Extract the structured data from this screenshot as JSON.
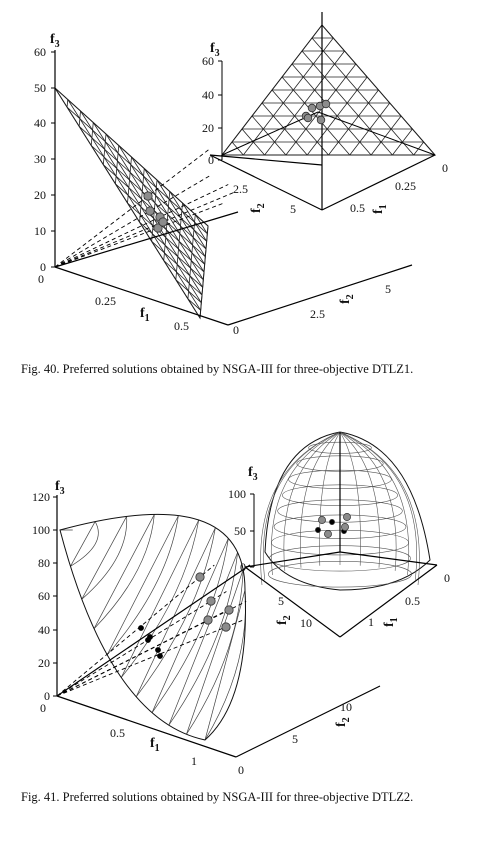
{
  "chart_data": [
    {
      "type": "scatter",
      "caption": "Fig. 40.  Preferred solutions obtained by NSGA-III for three-objective DTLZ1.",
      "main": {
        "axis_f3": {
          "name": "f",
          "sub": "3",
          "ticks": [
            "0",
            "10",
            "20",
            "30",
            "40",
            "50",
            "60"
          ]
        },
        "axis_f1": {
          "name": "f",
          "sub": "1",
          "ticks": [
            "0",
            "0.25",
            "0.5"
          ]
        },
        "axis_f2": {
          "name": "f",
          "sub": "2",
          "ticks": [
            "0",
            "2.5",
            "5"
          ]
        }
      },
      "inset": {
        "axis_f3": {
          "name": "f",
          "sub": "3",
          "ticks": [
            "0",
            "20",
            "40",
            "60"
          ]
        },
        "axis_f2": {
          "name": "f",
          "sub": "2",
          "ticks": [
            "2.5",
            "5"
          ]
        },
        "axis_f1": {
          "name": "f",
          "sub": "1",
          "ticks": [
            "0",
            "0.25",
            "0.5"
          ]
        }
      }
    },
    {
      "type": "scatter",
      "caption": "Fig. 41.  Preferred solutions obtained by NSGA-III for three-objective DTLZ2.",
      "main": {
        "axis_f3": {
          "name": "f",
          "sub": "3",
          "ticks": [
            "0",
            "20",
            "40",
            "60",
            "80",
            "100",
            "120"
          ]
        },
        "axis_f1": {
          "name": "f",
          "sub": "1",
          "ticks": [
            "0",
            "0.5",
            "1"
          ]
        },
        "axis_f2": {
          "name": "f",
          "sub": "2",
          "ticks": [
            "0",
            "5",
            "10"
          ]
        }
      },
      "inset": {
        "axis_f3": {
          "name": "f",
          "sub": "3",
          "ticks": [
            "0",
            "50",
            "100"
          ]
        },
        "axis_f2": {
          "name": "f",
          "sub": "2",
          "ticks": [
            "5",
            "10"
          ]
        },
        "axis_f1": {
          "name": "f",
          "sub": "1",
          "ticks": [
            "0",
            "0.5",
            "1"
          ]
        }
      }
    }
  ]
}
